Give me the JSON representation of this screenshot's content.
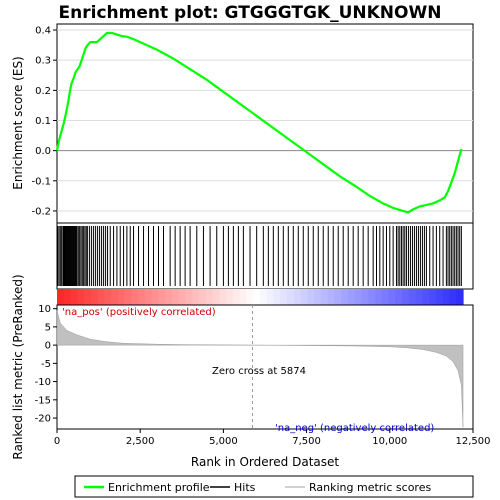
{
  "chart_data": {
    "type": "line",
    "title": "Enrichment plot: GTGGGTGK_UNKNOWN",
    "xlabel": "Rank in Ordered Dataset",
    "ylabel_top": "Enrichment score (ES)",
    "ylabel_bottom": "Ranked list metric (PreRanked)",
    "xlim": [
      0,
      12500
    ],
    "x_ticks": [
      0,
      2500,
      5000,
      7500,
      10000,
      12500
    ],
    "x_tick_labels": [
      "0",
      "2,500",
      "5,000",
      "7,500",
      "10,000",
      "12,500"
    ],
    "es_ylim": [
      -0.24,
      0.42
    ],
    "es_ticks": [
      -0.2,
      -0.1,
      0.0,
      0.1,
      0.2,
      0.3,
      0.4
    ],
    "es_tick_labels": [
      "-0.2",
      "-0.1",
      "0.0",
      "0.1",
      "0.2",
      "0.3",
      "0.4"
    ],
    "metric_ylim": [
      -23,
      11
    ],
    "metric_ticks": [
      -20,
      -15,
      -10,
      -5,
      0,
      5,
      10
    ],
    "metric_tick_labels": [
      "-20",
      "-15",
      "-10",
      "-5",
      "0",
      "5",
      "10"
    ],
    "n_genes": 12200,
    "zero_cross": 5874,
    "annotations": {
      "pos_label": "'na_pos' (positively correlated)",
      "neg_label": "'na_neg' (negatively correlated)",
      "zero_cross_label": "Zero cross at 5874"
    },
    "series": [
      {
        "name": "Enrichment profile",
        "color": "#00ff00",
        "points": [
          [
            0,
            0.0
          ],
          [
            50,
            0.03
          ],
          [
            100,
            0.05
          ],
          [
            150,
            0.07
          ],
          [
            200,
            0.09
          ],
          [
            260,
            0.12
          ],
          [
            320,
            0.15
          ],
          [
            380,
            0.19
          ],
          [
            430,
            0.22
          ],
          [
            500,
            0.24
          ],
          [
            560,
            0.26
          ],
          [
            620,
            0.27
          ],
          [
            680,
            0.28
          ],
          [
            740,
            0.3
          ],
          [
            800,
            0.32
          ],
          [
            860,
            0.34
          ],
          [
            920,
            0.35
          ],
          [
            1000,
            0.36
          ],
          [
            1100,
            0.36
          ],
          [
            1200,
            0.36
          ],
          [
            1300,
            0.37
          ],
          [
            1400,
            0.38
          ],
          [
            1500,
            0.39
          ],
          [
            1650,
            0.39
          ],
          [
            1800,
            0.385
          ],
          [
            1950,
            0.38
          ],
          [
            2100,
            0.378
          ],
          [
            2300,
            0.37
          ],
          [
            2600,
            0.355
          ],
          [
            3000,
            0.335
          ],
          [
            3500,
            0.305
          ],
          [
            4000,
            0.27
          ],
          [
            4500,
            0.235
          ],
          [
            5000,
            0.195
          ],
          [
            5500,
            0.155
          ],
          [
            5874,
            0.125
          ],
          [
            6500,
            0.075
          ],
          [
            7000,
            0.035
          ],
          [
            7500,
            -0.005
          ],
          [
            8000,
            -0.045
          ],
          [
            8500,
            -0.085
          ],
          [
            9000,
            -0.12
          ],
          [
            9400,
            -0.15
          ],
          [
            9800,
            -0.175
          ],
          [
            10100,
            -0.19
          ],
          [
            10400,
            -0.2
          ],
          [
            10550,
            -0.205
          ],
          [
            10700,
            -0.195
          ],
          [
            10900,
            -0.185
          ],
          [
            11100,
            -0.18
          ],
          [
            11300,
            -0.175
          ],
          [
            11500,
            -0.165
          ],
          [
            11650,
            -0.155
          ],
          [
            11750,
            -0.135
          ],
          [
            11850,
            -0.105
          ],
          [
            11950,
            -0.075
          ],
          [
            12050,
            -0.035
          ],
          [
            12150,
            0.005
          ]
        ]
      }
    ],
    "hits_label": "Hits",
    "hits": [
      20,
      60,
      100,
      140,
      180,
      210,
      240,
      270,
      300,
      330,
      360,
      390,
      420,
      450,
      480,
      510,
      540,
      570,
      600,
      640,
      680,
      720,
      760,
      800,
      840,
      880,
      920,
      980,
      1040,
      1100,
      1160,
      1220,
      1280,
      1340,
      1400,
      1460,
      1520,
      1600,
      1700,
      1800,
      1900,
      2000,
      2100,
      2200,
      2300,
      2450,
      2600,
      2750,
      2900,
      3050,
      3200,
      3400,
      3550,
      3700,
      3850,
      4000,
      4200,
      4400,
      4600,
      4800,
      5000,
      5150,
      5300,
      5450,
      5600,
      5800,
      6000,
      6200,
      6350,
      6500,
      6650,
      6800,
      6950,
      7100,
      7250,
      7400,
      7550,
      7700,
      7850,
      8000,
      8150,
      8300,
      8450,
      8600,
      8750,
      8900,
      9050,
      9200,
      9350,
      9500,
      9600,
      9700,
      9800,
      9900,
      10000,
      10100,
      10200,
      10250,
      10300,
      10350,
      10400,
      10450,
      10500,
      10560,
      10620,
      10680,
      10740,
      10800,
      10860,
      10920,
      10980,
      11040,
      11100,
      11200,
      11300,
      11400,
      11500,
      11600,
      11700,
      11750,
      11800,
      11850,
      11900,
      11950,
      12000,
      12050,
      12100,
      12150
    ],
    "metric_label": "Ranking metric scores",
    "metric_color": "#c0c0c0",
    "metric_profile": [
      [
        0,
        9.5
      ],
      [
        100,
        6.0
      ],
      [
        300,
        4.0
      ],
      [
        600,
        2.8
      ],
      [
        1000,
        1.6
      ],
      [
        1500,
        0.9
      ],
      [
        2000,
        0.5
      ],
      [
        3000,
        0.25
      ],
      [
        4000,
        0.12
      ],
      [
        5000,
        0.05
      ],
      [
        5874,
        0.0
      ],
      [
        7000,
        -0.08
      ],
      [
        8000,
        -0.15
      ],
      [
        9000,
        -0.25
      ],
      [
        10000,
        -0.45
      ],
      [
        10500,
        -0.7
      ],
      [
        11000,
        -1.2
      ],
      [
        11400,
        -2.0
      ],
      [
        11700,
        -3.0
      ],
      [
        11900,
        -4.5
      ],
      [
        12050,
        -7.0
      ],
      [
        12150,
        -11.0
      ],
      [
        12200,
        -22.5
      ]
    ],
    "legend": [
      {
        "label": "Enrichment profile",
        "color": "#00ff00"
      },
      {
        "label": "Hits",
        "color": "#000000"
      },
      {
        "label": "Ranking metric scores",
        "color": "#c0c0c0"
      }
    ]
  }
}
